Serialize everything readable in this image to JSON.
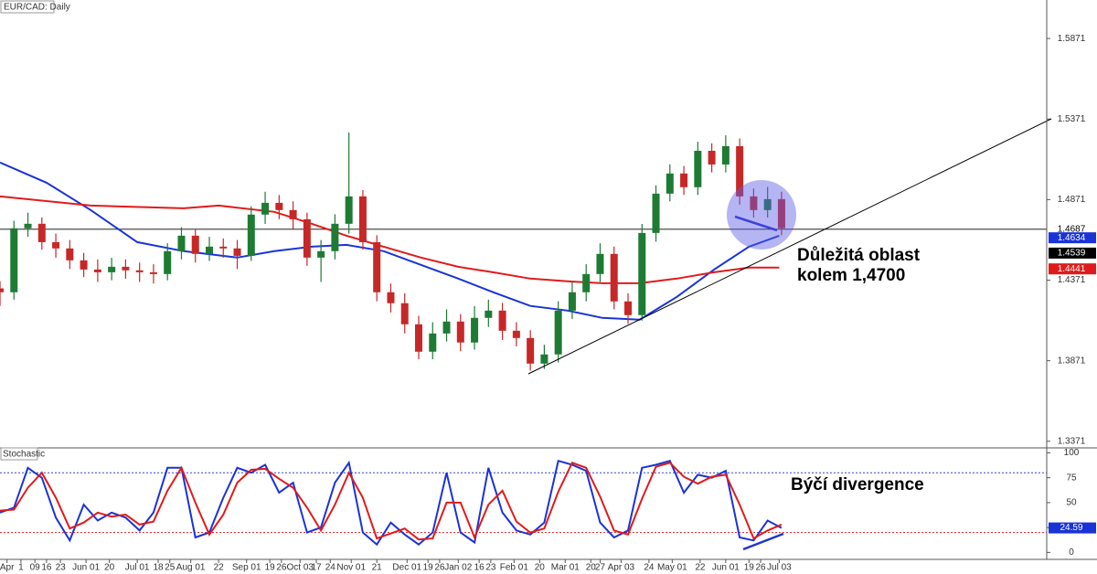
{
  "chart_data": [
    {
      "type": "candlestick",
      "title": "EUR/CAD: Daily",
      "x": [
        0,
        6,
        12,
        18,
        24,
        30,
        36,
        42,
        48,
        54,
        60,
        66,
        72,
        78,
        84,
        90,
        96,
        102,
        108,
        114,
        120,
        126,
        132,
        138,
        144,
        150,
        156,
        162,
        168,
        174,
        180,
        186,
        192,
        198,
        204,
        210,
        216,
        222,
        228,
        234,
        240,
        246,
        252,
        258,
        264,
        270,
        276,
        282,
        288,
        294,
        300,
        306,
        312,
        318,
        324,
        330,
        336
      ],
      "open": [
        1.432,
        1.4296,
        1.4693,
        1.4721,
        1.4607,
        1.4568,
        1.4494,
        1.4437,
        1.442,
        1.4454,
        1.4432,
        1.442,
        1.4409,
        1.4551,
        1.4647,
        1.4534,
        1.4579,
        1.4568,
        1.4522,
        1.4778,
        1.4851,
        1.4806,
        1.4749,
        1.4511,
        1.4551,
        1.4721,
        1.4891,
        1.4607,
        1.4296,
        1.4228,
        1.4097,
        1.3927,
        1.404,
        1.4114,
        1.3984,
        1.4137,
        1.4182,
        1.4057,
        1.4012,
        1.3853,
        1.391,
        1.4182,
        1.4296,
        1.4409,
        1.4534,
        1.4239,
        1.4154,
        1.4664,
        1.4908,
        1.5033,
        1.4948,
        1.5174,
        1.5089,
        1.5203,
        1.4891,
        1.4806,
        1.4874
      ],
      "high": [
        1.4365,
        1.474,
        1.479,
        1.476,
        1.466,
        1.462,
        1.454,
        1.45,
        1.451,
        1.45,
        1.448,
        1.447,
        1.46,
        1.47,
        1.469,
        1.464,
        1.463,
        1.462,
        1.483,
        1.492,
        1.49,
        1.486,
        1.479,
        1.462,
        1.478,
        1.5288,
        1.493,
        1.465,
        1.435,
        1.429,
        1.415,
        1.411,
        1.419,
        1.416,
        1.421,
        1.425,
        1.423,
        1.411,
        1.406,
        1.397,
        1.424,
        1.436,
        1.447,
        1.46,
        1.458,
        1.429,
        1.472,
        1.496,
        1.509,
        1.508,
        1.523,
        1.522,
        1.527,
        1.525,
        1.494,
        1.495,
        1.492
      ],
      "low": [
        1.421,
        1.425,
        1.464,
        1.456,
        1.451,
        1.444,
        1.439,
        1.436,
        1.437,
        1.438,
        1.436,
        1.435,
        1.437,
        1.45,
        1.448,
        1.449,
        1.451,
        1.444,
        1.449,
        1.472,
        1.475,
        1.469,
        1.446,
        1.436,
        1.45,
        1.466,
        1.456,
        1.424,
        1.417,
        1.404,
        1.388,
        1.388,
        1.399,
        1.393,
        1.394,
        1.408,
        1.4,
        1.396,
        1.381,
        1.382,
        1.386,
        1.413,
        1.424,
        1.436,
        1.419,
        1.41,
        1.412,
        1.461,
        1.486,
        1.49,
        1.49,
        1.504,
        1.504,
        1.484,
        1.476,
        1.476,
        1.465
      ],
      "close": [
        1.4296,
        1.4693,
        1.4721,
        1.4607,
        1.4568,
        1.4494,
        1.4437,
        1.442,
        1.4454,
        1.4432,
        1.442,
        1.4409,
        1.4551,
        1.4647,
        1.4534,
        1.4579,
        1.4568,
        1.4522,
        1.4778,
        1.4851,
        1.4806,
        1.4749,
        1.4511,
        1.4551,
        1.4721,
        1.4891,
        1.4607,
        1.4296,
        1.4228,
        1.4097,
        1.3927,
        1.404,
        1.4114,
        1.3984,
        1.4137,
        1.4182,
        1.4057,
        1.4012,
        1.3853,
        1.391,
        1.4182,
        1.4296,
        1.4409,
        1.4534,
        1.4239,
        1.4154,
        1.4664,
        1.4908,
        1.5033,
        1.4948,
        1.5174,
        1.5089,
        1.5203,
        1.4891,
        1.4806,
        1.4874,
        1.4693
      ],
      "color_up": "#1e7b34",
      "color_down": "#c62828",
      "series": [
        {
          "color": "#1a33d6",
          "x": [
            0,
            20,
            39,
            59,
            79,
            102,
            118,
            134,
            149,
            165,
            181,
            197,
            212,
            228,
            244,
            259,
            275,
            291,
            307,
            322,
            335
          ],
          "values": [
            1.5101,
            1.4976,
            1.4806,
            1.4607,
            1.4551,
            1.4511,
            1.4551,
            1.4579,
            1.459,
            1.4551,
            1.4466,
            1.4381,
            1.4296,
            1.4211,
            1.4182,
            1.4137,
            1.4126,
            1.4267,
            1.4437,
            1.4579,
            1.4647
          ]
        },
        {
          "color": "#e01b1b",
          "x": [
            0,
            39,
            79,
            94,
            118,
            134,
            149,
            165,
            181,
            197,
            212,
            228,
            244,
            259,
            275,
            291,
            307,
            322,
            335
          ],
          "values": [
            1.4891,
            1.4834,
            1.4817,
            1.4834,
            1.4795,
            1.4721,
            1.4647,
            1.4579,
            1.4511,
            1.4454,
            1.442,
            1.4381,
            1.4364,
            1.4352,
            1.4352,
            1.4381,
            1.442,
            1.4449,
            1.4449
          ]
        }
      ],
      "xlim": [
        0,
        450
      ],
      "ylim": [
        1.333,
        1.611
      ],
      "yticks": [
        1.3371,
        1.3871,
        1.4371,
        1.4871,
        1.5371,
        1.5871
      ],
      "last_price": {
        "value": 1.4687,
        "color": "#000000"
      },
      "price_tags": [
        {
          "value": 1.4634,
          "color": "#1a33d6"
        },
        {
          "value": 1.4539,
          "color": "#000000"
        },
        {
          "value": 1.4441,
          "color": "#e01b1b"
        }
      ],
      "annotation": [
        "Důležitá oblast",
        "kolem 1,4700"
      ]
    },
    {
      "type": "line",
      "title": "Stochastic",
      "x": [
        0,
        6,
        12,
        18,
        24,
        30,
        36,
        42,
        48,
        54,
        60,
        66,
        72,
        78,
        84,
        90,
        96,
        102,
        108,
        114,
        120,
        126,
        132,
        138,
        144,
        150,
        156,
        162,
        168,
        174,
        180,
        186,
        192,
        198,
        204,
        210,
        216,
        222,
        228,
        234,
        240,
        246,
        252,
        258,
        264,
        270,
        276,
        282,
        288,
        294,
        300,
        306,
        312,
        318,
        324,
        330,
        336
      ],
      "series": [
        {
          "color": "#1a33d6",
          "values": [
            40,
            45,
            85,
            75,
            35,
            12,
            48,
            32,
            40,
            35,
            22,
            40,
            85,
            85,
            15,
            20,
            55,
            85,
            80,
            88,
            60,
            70,
            20,
            25,
            70,
            90,
            20,
            8,
            30,
            18,
            8,
            20,
            80,
            20,
            10,
            85,
            40,
            22,
            18,
            30,
            92,
            88,
            82,
            30,
            15,
            22,
            85,
            88,
            92,
            60,
            78,
            75,
            82,
            15,
            12,
            32,
            24.59
          ]
        },
        {
          "color": "#e01b1b",
          "values": [
            42,
            43,
            65,
            80,
            55,
            24,
            30,
            40,
            36,
            38,
            28,
            31,
            62,
            85,
            50,
            18,
            38,
            70,
            83,
            84,
            74,
            65,
            45,
            22,
            48,
            80,
            55,
            14,
            19,
            24,
            13,
            14,
            50,
            50,
            15,
            48,
            62,
            31,
            20,
            24,
            61,
            90,
            85,
            56,
            22,
            18,
            54,
            86,
            90,
            76,
            69,
            76,
            78,
            48,
            14,
            22,
            28
          ]
        }
      ],
      "xlim": [
        0,
        450
      ],
      "ylim": [
        -7,
        105
      ],
      "yticks": [
        0,
        25,
        50,
        75,
        100
      ],
      "levels": [
        80,
        20
      ],
      "xticks": [
        {
          "value": 3,
          "label": "Apr"
        },
        {
          "value": 9,
          "label": "1"
        },
        {
          "value": 15,
          "label": "09"
        },
        {
          "value": 20,
          "label": "16"
        },
        {
          "value": 26,
          "label": "23"
        },
        {
          "value": 37,
          "label": "Jun 01"
        },
        {
          "value": 47,
          "label": "20"
        },
        {
          "value": 59,
          "label": "Jul 01"
        },
        {
          "value": 68,
          "label": "18"
        },
        {
          "value": 73,
          "label": "25"
        },
        {
          "value": 82,
          "label": "Aug 01"
        },
        {
          "value": 94,
          "label": "22"
        },
        {
          "value": 106,
          "label": "Sep 01"
        },
        {
          "value": 116,
          "label": "19"
        },
        {
          "value": 121,
          "label": "26"
        },
        {
          "value": 129,
          "label": "Oct 03"
        },
        {
          "value": 136,
          "label": "17"
        },
        {
          "value": 142,
          "label": "24"
        },
        {
          "value": 151,
          "label": "Nov 01"
        },
        {
          "value": 162,
          "label": "21"
        },
        {
          "value": 175,
          "label": "Dec 01"
        },
        {
          "value": 184,
          "label": "19"
        },
        {
          "value": 189,
          "label": "26"
        },
        {
          "value": 197,
          "label": "Jan 02"
        },
        {
          "value": 206,
          "label": "16"
        },
        {
          "value": 211,
          "label": "23"
        },
        {
          "value": 221,
          "label": "Feb 01"
        },
        {
          "value": 232,
          "label": "20"
        },
        {
          "value": 243,
          "label": "Mar 01"
        },
        {
          "value": 254,
          "label": "20"
        },
        {
          "value": 258,
          "label": "27"
        },
        {
          "value": 267,
          "label": "Apr 03"
        },
        {
          "value": 279,
          "label": "24"
        },
        {
          "value": 289,
          "label": "May 01"
        },
        {
          "value": 301,
          "label": "22"
        },
        {
          "value": 312,
          "label": "Jun 01"
        },
        {
          "value": 322,
          "label": "19"
        },
        {
          "value": 327,
          "label": "26"
        },
        {
          "value": 335,
          "label": "Jul 03"
        }
      ],
      "annotation": "Býčí divergence"
    }
  ]
}
